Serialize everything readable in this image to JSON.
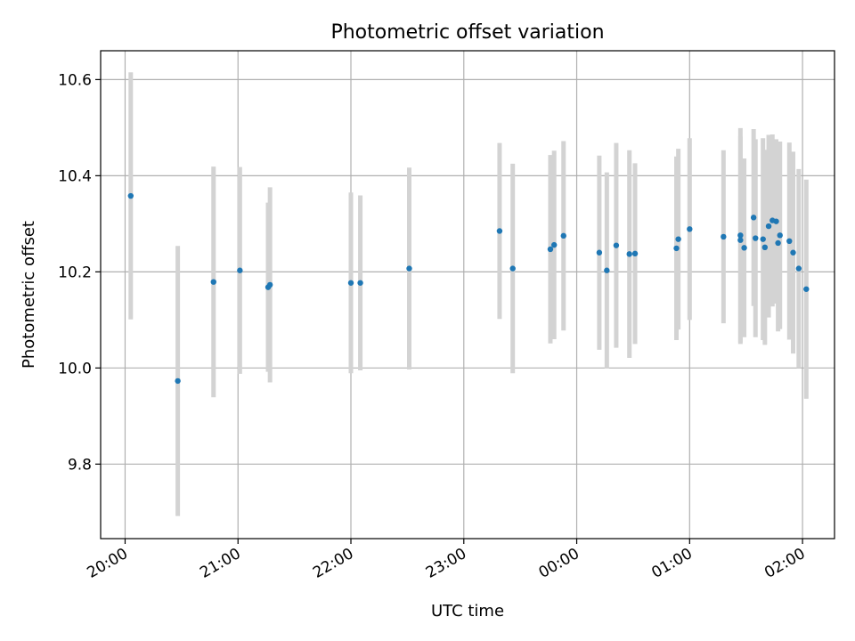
{
  "chart_data": {
    "type": "scatter",
    "title": "Photometric offset variation",
    "xlabel": "UTC time",
    "ylabel": "Photometric offset",
    "xlim": [
      "19:47",
      "02:17"
    ],
    "ylim": [
      9.645,
      10.66
    ],
    "x_ticks": [
      "20:00",
      "21:00",
      "22:00",
      "23:00",
      "00:00",
      "01:00",
      "02:00"
    ],
    "y_ticks": [
      9.8,
      10.0,
      10.2,
      10.4,
      10.6
    ],
    "grid": true,
    "colors": {
      "point": "#1f77b4",
      "errorbar": "#d3d3d3",
      "grid": "#b0b0b0"
    },
    "points": [
      {
        "x": "20:03",
        "y": 10.358,
        "err": 0.257
      },
      {
        "x": "20:28",
        "y": 9.973,
        "err": 0.281
      },
      {
        "x": "20:47",
        "y": 10.179,
        "err": 0.24
      },
      {
        "x": "21:01",
        "y": 10.203,
        "err": 0.215
      },
      {
        "x": "21:16",
        "y": 10.168,
        "err": 0.176
      },
      {
        "x": "21:17",
        "y": 10.173,
        "err": 0.203
      },
      {
        "x": "22:00",
        "y": 10.177,
        "err": 0.188
      },
      {
        "x": "22:05",
        "y": 10.177,
        "err": 0.182
      },
      {
        "x": "22:31",
        "y": 10.207,
        "err": 0.21
      },
      {
        "x": "23:19",
        "y": 10.285,
        "err": 0.183
      },
      {
        "x": "23:26",
        "y": 10.207,
        "err": 0.218
      },
      {
        "x": "23:46",
        "y": 10.247,
        "err": 0.196
      },
      {
        "x": "23:48",
        "y": 10.256,
        "err": 0.196
      },
      {
        "x": "23:53",
        "y": 10.275,
        "err": 0.197
      },
      {
        "x": "00:12",
        "y": 10.24,
        "err": 0.202
      },
      {
        "x": "00:16",
        "y": 10.203,
        "err": 0.204
      },
      {
        "x": "00:21",
        "y": 10.255,
        "err": 0.213
      },
      {
        "x": "00:28",
        "y": 10.237,
        "err": 0.216
      },
      {
        "x": "00:31",
        "y": 10.238,
        "err": 0.188
      },
      {
        "x": "00:53",
        "y": 10.249,
        "err": 0.191
      },
      {
        "x": "00:54",
        "y": 10.268,
        "err": 0.188
      },
      {
        "x": "01:00",
        "y": 10.289,
        "err": 0.189
      },
      {
        "x": "01:18",
        "y": 10.273,
        "err": 0.18
      },
      {
        "x": "01:27",
        "y": 10.276,
        "err": 0.223
      },
      {
        "x": "01:27",
        "y": 10.266,
        "err": 0.216
      },
      {
        "x": "01:29",
        "y": 10.25,
        "err": 0.186
      },
      {
        "x": "01:34",
        "y": 10.313,
        "err": 0.184
      },
      {
        "x": "01:35",
        "y": 10.27,
        "err": 0.206
      },
      {
        "x": "01:39",
        "y": 10.268,
        "err": 0.21
      },
      {
        "x": "01:40",
        "y": 10.251,
        "err": 0.203
      },
      {
        "x": "01:42",
        "y": 10.295,
        "err": 0.19
      },
      {
        "x": "01:44",
        "y": 10.307,
        "err": 0.179
      },
      {
        "x": "01:46",
        "y": 10.305,
        "err": 0.171
      },
      {
        "x": "01:47",
        "y": 10.26,
        "err": 0.184
      },
      {
        "x": "01:48",
        "y": 10.276,
        "err": 0.195
      },
      {
        "x": "01:53",
        "y": 10.264,
        "err": 0.205
      },
      {
        "x": "01:55",
        "y": 10.24,
        "err": 0.21
      },
      {
        "x": "01:58",
        "y": 10.207,
        "err": 0.207
      },
      {
        "x": "02:02",
        "y": 10.164,
        "err": 0.228
      }
    ]
  }
}
